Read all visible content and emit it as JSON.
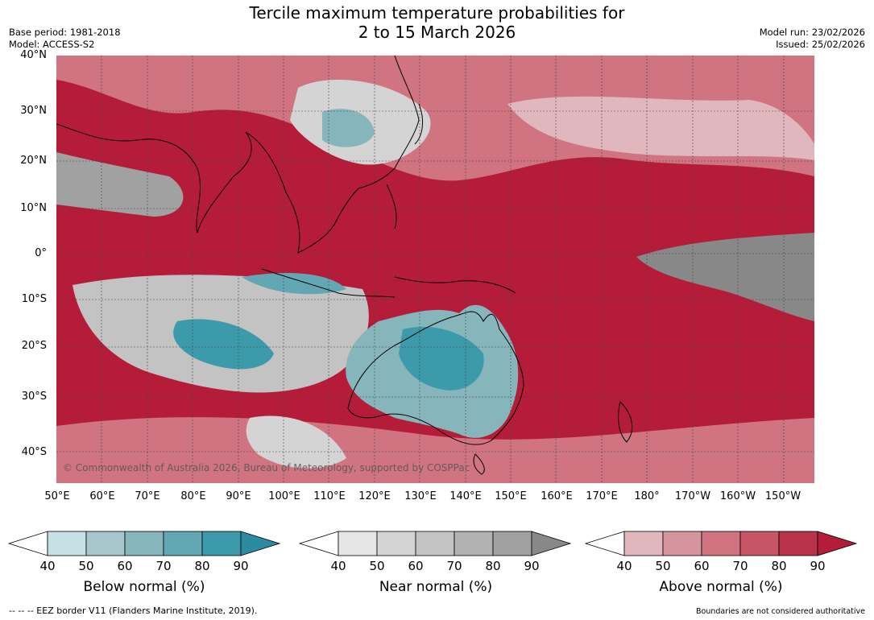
{
  "title_line1": "Tercile maximum temperature probabilities for",
  "title_line2": "2 to 15 March 2026",
  "base_period": "Base period: 1981-2018",
  "model": "Model: ACCESS-S2",
  "model_run": "Model run: 23/02/2026",
  "issued": "Issued: 25/02/2026",
  "copyright": "© Commonwealth of Australia 2026, Bureau of Meteorology, supported by COSPPac",
  "lat_labels": [
    "40°N",
    "30°N",
    "20°N",
    "10°N",
    "0°",
    "10°S",
    "20°S",
    "30°S",
    "40°S"
  ],
  "lon_labels": [
    "50°E",
    "60°E",
    "70°E",
    "80°E",
    "90°E",
    "100°E",
    "110°E",
    "120°E",
    "130°E",
    "140°E",
    "150°E",
    "160°E",
    "170°E",
    "180°",
    "170°W",
    "160°W",
    "150°W"
  ],
  "colorbars": [
    {
      "title": "Below normal (%)",
      "ticks": [
        "40",
        "50",
        "60",
        "70",
        "80",
        "90"
      ],
      "colors": [
        "#ffffff",
        "#c7e0e6",
        "#a6c6cb",
        "#86b5bb",
        "#63a7b5",
        "#3d9aab",
        "#2b8a9e"
      ]
    },
    {
      "title": "Near normal (%)",
      "ticks": [
        "40",
        "50",
        "60",
        "70",
        "80",
        "90"
      ],
      "colors": [
        "#ffffff",
        "#e6e6e6",
        "#d4d4d4",
        "#c3c3c3",
        "#b2b2b2",
        "#a1a1a1",
        "#888888"
      ]
    },
    {
      "title": "Above normal (%)",
      "ticks": [
        "40",
        "50",
        "60",
        "70",
        "80",
        "90"
      ],
      "colors": [
        "#ffffff",
        "#e0b7bc",
        "#d6959d",
        "#cf7480",
        "#c75566",
        "#b8334a",
        "#b51c39"
      ]
    }
  ],
  "footer_left": "--  --  -- EEZ border V11 (Flanders Marine Institute, 2019).",
  "footer_right": "Boundaries are not considered authoritative"
}
